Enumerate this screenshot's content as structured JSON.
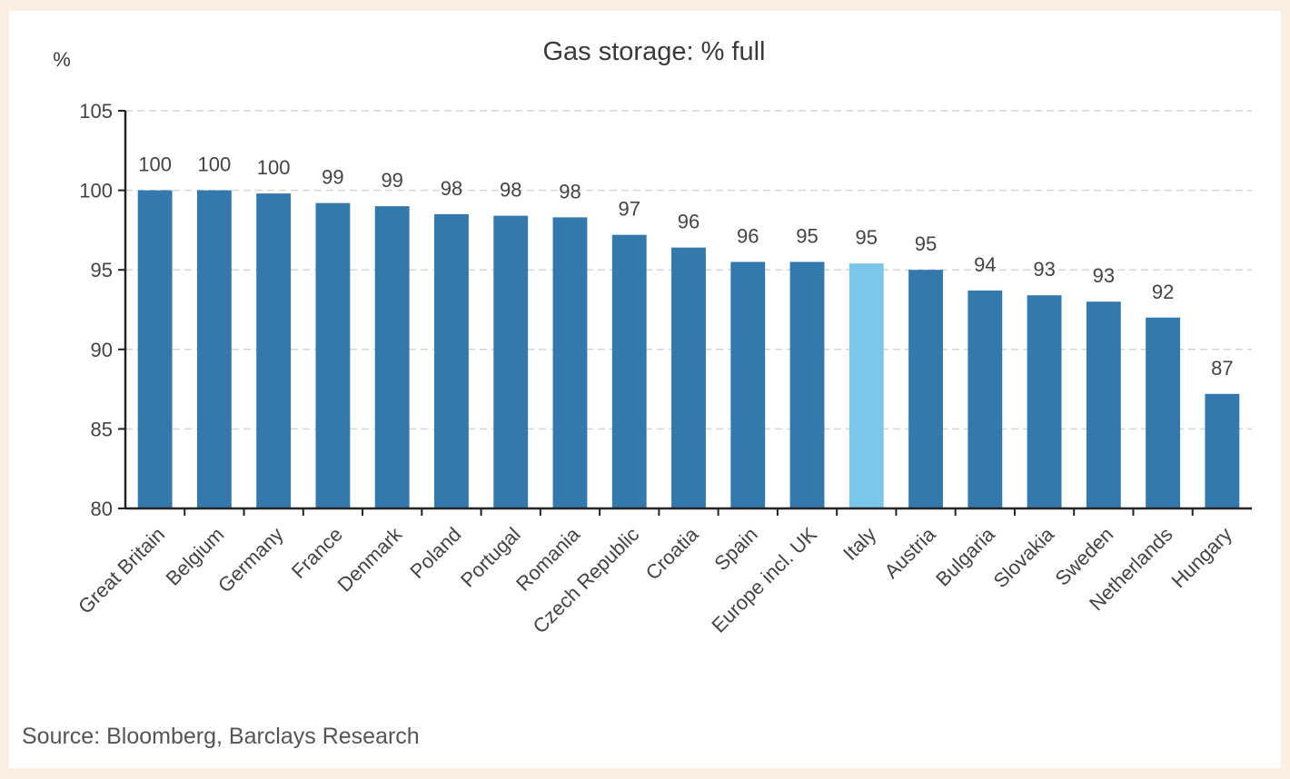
{
  "chart_data": {
    "type": "bar",
    "title": "Gas storage: % full",
    "ylabel": "%",
    "xlabel": "",
    "ylim": [
      80,
      105
    ],
    "yticks": [
      80,
      85,
      90,
      95,
      100,
      105
    ],
    "grid": true,
    "categories": [
      "Great Britain",
      "Belgium",
      "Germany",
      "France",
      "Denmark",
      "Poland",
      "Portugal",
      "Romania",
      "Czech Republic",
      "Croatia",
      "Spain",
      "Europe incl. UK",
      "Italy",
      "Austria",
      "Bulgaria",
      "Slovakia",
      "Sweden",
      "Netherlands",
      "Hungary"
    ],
    "values": [
      100.0,
      100.0,
      99.8,
      99.2,
      99.0,
      98.5,
      98.4,
      98.3,
      97.2,
      96.4,
      95.5,
      95.5,
      95.4,
      95.0,
      93.7,
      93.4,
      93.0,
      92.0,
      87.2
    ],
    "data_labels": [
      "100",
      "100",
      "100",
      "99",
      "99",
      "98",
      "98",
      "98",
      "97",
      "96",
      "96",
      "95",
      "95",
      "95",
      "94",
      "93",
      "93",
      "92",
      "87"
    ],
    "bar_color": "#3479ae",
    "highlight_color": "#7cc6ec",
    "highlight_category": "Italy"
  },
  "source": "Source: Bloomberg, Barclays Research"
}
